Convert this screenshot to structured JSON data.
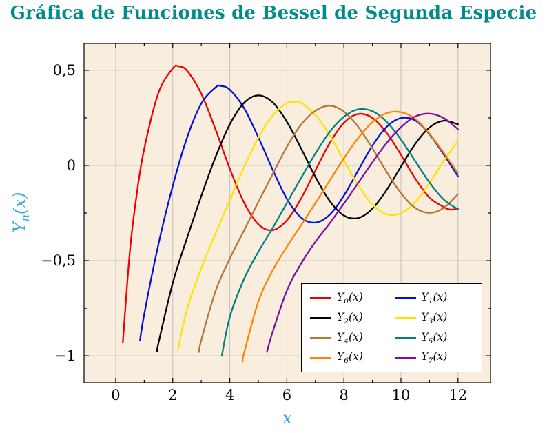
{
  "title": {
    "text": "Gráfica de Funciones de Bessel de Segunda Especie",
    "color": "#008c8c"
  },
  "axes": {
    "x_label": "x",
    "y_label": {
      "base": "Y",
      "sub": "n",
      "args": "(x)"
    },
    "label_color": "#2ca6e0",
    "x_range": [
      -1.11,
      13.14
    ],
    "y_range": [
      -1.141,
      0.641
    ],
    "x_ticks": [
      0,
      2,
      4,
      6,
      8,
      10,
      12
    ],
    "x_tick_labels": [
      "0",
      "2",
      "4",
      "6",
      "8",
      "10",
      "12"
    ],
    "x_minor_ticks": [
      1,
      3,
      5,
      7,
      9,
      11
    ],
    "y_ticks": [
      0.5,
      0,
      -0.5,
      -1
    ],
    "y_tick_labels": [
      "0,5",
      "0",
      "−0,5",
      "−1"
    ],
    "y_minor_ticks": [
      0.25,
      -0.25,
      -0.75
    ],
    "plot_bg": "#f9eedd",
    "grid_color": "#c2c2c2",
    "axis_color": "#000000"
  },
  "chart_data": {
    "type": "line",
    "title": "Gráfica de Funciones de Bessel de Segunda Especie",
    "xlabel": "x",
    "ylabel": "Y_n(x)",
    "xlim": [
      0,
      12
    ],
    "ylim": [
      -1,
      0.5
    ],
    "grid": true,
    "legend_position": "bottom-right",
    "series": [
      {
        "id": "y0",
        "name": "Y_0(x)",
        "label": {
          "base": "Y",
          "sub": "0",
          "args": "(x)"
        },
        "color": "#ee0000",
        "points": [
          [
            0.25,
            -0.93
          ],
          [
            0.5,
            -0.444
          ],
          [
            0.75,
            -0.137
          ],
          [
            1,
            0.088
          ],
          [
            1.5,
            0.382
          ],
          [
            2,
            0.51
          ],
          [
            2.2,
            0.521
          ],
          [
            2.5,
            0.498
          ],
          [
            3,
            0.377
          ],
          [
            3.5,
            0.189
          ],
          [
            4,
            -0.017
          ],
          [
            4.5,
            -0.195
          ],
          [
            5,
            -0.309
          ],
          [
            5.5,
            -0.34
          ],
          [
            6,
            -0.288
          ],
          [
            6.5,
            -0.173
          ],
          [
            7,
            -0.026
          ],
          [
            7.5,
            0.117
          ],
          [
            8,
            0.224
          ],
          [
            8.5,
            0.27
          ],
          [
            9,
            0.25
          ],
          [
            9.5,
            0.171
          ],
          [
            10,
            0.056
          ],
          [
            10.5,
            -0.068
          ],
          [
            11,
            -0.169
          ],
          [
            11.5,
            -0.218
          ],
          [
            11.75,
            -0.232
          ],
          [
            12,
            -0.225
          ]
        ]
      },
      {
        "id": "y1",
        "name": "Y_1(x)",
        "label": {
          "base": "Y",
          "sub": "1",
          "args": "(x)"
        },
        "color": "#0011dd",
        "points": [
          [
            0.85,
            -0.92
          ],
          [
            1,
            -0.781
          ],
          [
            1.5,
            -0.412
          ],
          [
            2,
            -0.107
          ],
          [
            2.5,
            0.146
          ],
          [
            3,
            0.325
          ],
          [
            3.5,
            0.41
          ],
          [
            3.7,
            0.417
          ],
          [
            4,
            0.398
          ],
          [
            4.5,
            0.301
          ],
          [
            5,
            0.148
          ],
          [
            5.5,
            -0.021
          ],
          [
            6,
            -0.175
          ],
          [
            6.5,
            -0.274
          ],
          [
            7,
            -0.3
          ],
          [
            7.5,
            -0.259
          ],
          [
            8,
            -0.158
          ],
          [
            8.5,
            -0.026
          ],
          [
            9,
            0.104
          ],
          [
            9.5,
            0.203
          ],
          [
            10,
            0.249
          ],
          [
            10.5,
            0.236
          ],
          [
            11,
            0.164
          ],
          [
            11.5,
            0.058
          ],
          [
            12,
            -0.057
          ]
        ]
      },
      {
        "id": "y2",
        "name": "Y_2(x)",
        "label": {
          "base": "Y",
          "sub": "2",
          "args": "(x)"
        },
        "color": "#000000",
        "points": [
          [
            1.45,
            -0.975
          ],
          [
            1.5,
            -0.932
          ],
          [
            2,
            -0.617
          ],
          [
            2.5,
            -0.381
          ],
          [
            3,
            -0.16
          ],
          [
            3.5,
            0.045
          ],
          [
            4,
            0.216
          ],
          [
            4.5,
            0.329
          ],
          [
            5,
            0.368
          ],
          [
            5.5,
            0.332
          ],
          [
            6,
            0.23
          ],
          [
            6.5,
            0.089
          ],
          [
            7,
            -0.06
          ],
          [
            7.5,
            -0.186
          ],
          [
            8,
            -0.263
          ],
          [
            8.5,
            -0.276
          ],
          [
            9,
            -0.227
          ],
          [
            9.5,
            -0.128
          ],
          [
            10,
            -0.006
          ],
          [
            10.5,
            0.113
          ],
          [
            11,
            0.199
          ],
          [
            11.5,
            0.235
          ],
          [
            12,
            0.216
          ]
        ]
      },
      {
        "id": "y3",
        "name": "Y_3(x)",
        "label": {
          "base": "Y",
          "sub": "3",
          "args": "(x)"
        },
        "color": "#ffe300",
        "points": [
          [
            2.18,
            -0.97
          ],
          [
            2.5,
            -0.756
          ],
          [
            3,
            -0.539
          ],
          [
            3.5,
            -0.358
          ],
          [
            4,
            -0.182
          ],
          [
            4.5,
            -0.009
          ],
          [
            5,
            0.146
          ],
          [
            5.5,
            0.262
          ],
          [
            6,
            0.328
          ],
          [
            6.3,
            0.334
          ],
          [
            6.5,
            0.329
          ],
          [
            7,
            0.265
          ],
          [
            7.5,
            0.16
          ],
          [
            8,
            0.027
          ],
          [
            8.5,
            -0.104
          ],
          [
            9,
            -0.205
          ],
          [
            9.5,
            -0.257
          ],
          [
            10,
            -0.251
          ],
          [
            10.5,
            -0.193
          ],
          [
            11,
            -0.092
          ],
          [
            11.5,
            0.024
          ],
          [
            12,
            0.129
          ]
        ]
      },
      {
        "id": "y4",
        "name": "Y_4(x)",
        "label": {
          "base": "Y",
          "sub": "4",
          "args": "(x)"
        },
        "color": "#b5763a",
        "points": [
          [
            2.92,
            -0.98
          ],
          [
            3,
            -0.917
          ],
          [
            3.5,
            -0.66
          ],
          [
            4,
            -0.489
          ],
          [
            4.5,
            -0.341
          ],
          [
            5,
            -0.192
          ],
          [
            5.5,
            -0.046
          ],
          [
            6,
            0.098
          ],
          [
            6.5,
            0.215
          ],
          [
            7,
            0.287
          ],
          [
            7.5,
            0.314
          ],
          [
            8,
            0.283
          ],
          [
            8.5,
            0.203
          ],
          [
            9,
            0.09
          ],
          [
            9.5,
            -0.034
          ],
          [
            10,
            -0.145
          ],
          [
            10.5,
            -0.223
          ],
          [
            11,
            -0.249
          ],
          [
            11.5,
            -0.223
          ],
          [
            12,
            -0.151
          ]
        ]
      },
      {
        "id": "y5",
        "name": "Y_5(x)",
        "label": {
          "base": "Y",
          "sub": "5",
          "args": "(x)"
        },
        "color": "#007f80",
        "points": [
          [
            3.72,
            -1.0
          ],
          [
            4,
            -0.796
          ],
          [
            4.5,
            -0.596
          ],
          [
            5,
            -0.454
          ],
          [
            5.5,
            -0.329
          ],
          [
            6,
            -0.197
          ],
          [
            6.5,
            -0.065
          ],
          [
            7,
            0.063
          ],
          [
            7.5,
            0.176
          ],
          [
            8,
            0.256
          ],
          [
            8.5,
            0.295
          ],
          [
            9,
            0.285
          ],
          [
            9.5,
            0.229
          ],
          [
            10,
            0.136
          ],
          [
            10.5,
            0.023
          ],
          [
            11,
            -0.089
          ],
          [
            11.5,
            -0.179
          ],
          [
            12,
            -0.23
          ]
        ]
      },
      {
        "id": "y6",
        "name": "Y_6(x)",
        "label": {
          "base": "Y",
          "sub": "6",
          "args": "(x)"
        },
        "color": "#ff8200",
        "points": [
          [
            4.45,
            -1.03
          ],
          [
            4.5,
            -0.985
          ],
          [
            5,
            -0.715
          ],
          [
            5.5,
            -0.552
          ],
          [
            6,
            -0.427
          ],
          [
            6.5,
            -0.314
          ],
          [
            7,
            -0.198
          ],
          [
            7.5,
            -0.08
          ],
          [
            8,
            0.038
          ],
          [
            8.5,
            0.144
          ],
          [
            9,
            0.227
          ],
          [
            9.5,
            0.275
          ],
          [
            10,
            0.28
          ],
          [
            10.5,
            0.245
          ],
          [
            11,
            0.167
          ],
          [
            11.5,
            0.067
          ],
          [
            12,
            -0.04
          ]
        ]
      },
      {
        "id": "y7",
        "name": "Y_7(x)",
        "label": {
          "base": "Y",
          "sub": "7",
          "args": "(x)"
        },
        "color": "#7d0fa0",
        "points": [
          [
            5.3,
            -0.98
          ],
          [
            5.5,
            -0.876
          ],
          [
            6,
            -0.657
          ],
          [
            6.5,
            -0.515
          ],
          [
            7,
            -0.401
          ],
          [
            7.5,
            -0.304
          ],
          [
            8,
            -0.2
          ],
          [
            8.5,
            -0.092
          ],
          [
            9,
            0.017
          ],
          [
            9.5,
            0.118
          ],
          [
            10,
            0.201
          ],
          [
            10.5,
            0.257
          ],
          [
            11,
            0.272
          ],
          [
            11.5,
            0.249
          ],
          [
            12,
            0.19
          ]
        ]
      }
    ]
  }
}
